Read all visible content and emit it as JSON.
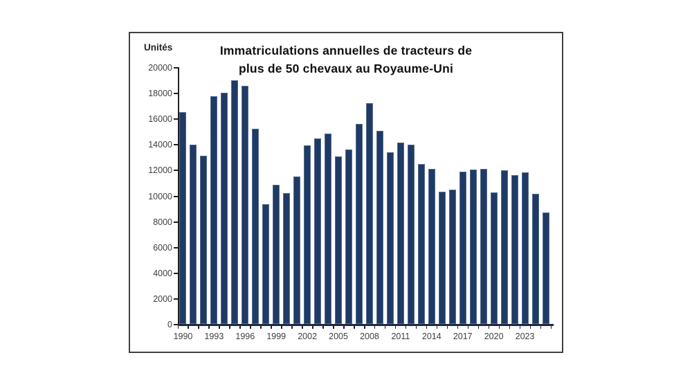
{
  "chart": {
    "units_label": "Unités",
    "title_line1": "Immatriculations annuelles de tracteurs de",
    "title_line2": "plus de 50 chevaux au Royaume-Uni"
  },
  "colors": {
    "bar": "#1f3a64",
    "axis": "#1f1f1f",
    "x_axis_line": "#1c2a47",
    "tick_label": "#3f3f3f",
    "title": "#111111",
    "frame_border": "#404040",
    "background": "#ffffff"
  },
  "chart_data": {
    "type": "bar",
    "title": "Immatriculations annuelles de tracteurs de plus de 50 chevaux au Royaume-Uni",
    "ylabel": "Unités",
    "xlabel": "",
    "ylim": [
      0,
      20000
    ],
    "ytick_step": 2000,
    "grid": false,
    "legend": false,
    "x_label_every": 3,
    "categories": [
      1990,
      1991,
      1992,
      1993,
      1994,
      1995,
      1996,
      1997,
      1998,
      1999,
      2000,
      2001,
      2002,
      2003,
      2004,
      2005,
      2006,
      2007,
      2008,
      2009,
      2010,
      2011,
      2012,
      2013,
      2014,
      2015,
      2016,
      2017,
      2018,
      2019,
      2020,
      2021,
      2022,
      2023,
      2024,
      2025
    ],
    "values": [
      16500,
      13950,
      13100,
      17750,
      18000,
      18950,
      18550,
      15200,
      9350,
      10850,
      10200,
      11500,
      13900,
      14450,
      14800,
      13050,
      13600,
      15600,
      17200,
      15050,
      13350,
      14100,
      13950,
      12450,
      12100,
      10300,
      10450,
      11850,
      12000,
      12050,
      10250,
      11950,
      11600,
      11800,
      10150,
      8700
    ]
  }
}
